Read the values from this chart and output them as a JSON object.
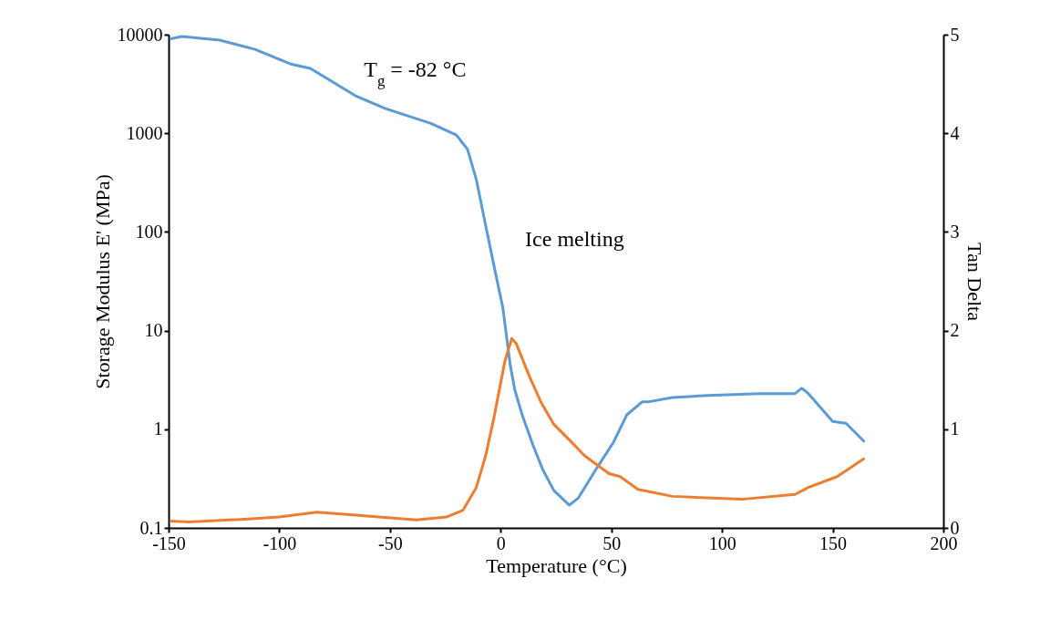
{
  "chart_data": {
    "type": "line",
    "xlabel": "Temperature (°C)",
    "ylabel": "Storage Modulus E' (MPa)",
    "y2label": "Tan Delta",
    "xlim": [
      -150,
      200
    ],
    "xticks": [
      -150,
      -100,
      -50,
      0,
      50,
      100,
      150,
      200
    ],
    "ylim": [
      0.1,
      10000
    ],
    "yticks": [
      0.1,
      1,
      10,
      100,
      1000,
      10000
    ],
    "log": "y",
    "y2lim": [
      0,
      5
    ],
    "y2ticks": [
      0,
      1,
      2,
      3,
      4,
      5
    ],
    "grid": false,
    "marker": "none",
    "line_style": "solid",
    "annotations": [
      "T$_{g}$ = -82 °C",
      "Ice melting"
    ],
    "series": [
      {
        "color": "#5b9bd5",
        "x": [
          -149,
          -144,
          -127,
          -111,
          -94.4,
          -86,
          -65.6,
          -52,
          -31.5,
          -20,
          -15,
          -11,
          -6.8,
          -2.3,
          1,
          4.3,
          6.4,
          9.7,
          14.6,
          19,
          24,
          31,
          35,
          43,
          51,
          57,
          64,
          67,
          77.6,
          93.5,
          117,
          133,
          136,
          139,
          150,
          156,
          164
        ],
        "values": [
          9100,
          9600,
          8800,
          7100,
          5000,
          4550,
          2400,
          1780,
          1260,
          960,
          690,
          340,
          117,
          38,
          17,
          4.5,
          2.5,
          1.4,
          0.69,
          0.39,
          0.24,
          0.17,
          0.2,
          0.39,
          0.74,
          1.4,
          1.9,
          1.9,
          2.1,
          2.2,
          2.3,
          2.3,
          2.6,
          2.3,
          1.2,
          1.15,
          0.76
        ]
      },
      {
        "color": "#ed7d31",
        "axis": "y2",
        "x": [
          -149,
          -141,
          -114,
          -100,
          -83,
          -65.6,
          -38,
          -24.5,
          -17,
          -11,
          -6.8,
          -3,
          1.9,
          5,
          7,
          12.9,
          18.3,
          24,
          32,
          38,
          49,
          54,
          62,
          77.6,
          109,
          133,
          139,
          152,
          164
        ],
        "values": [
          0.07,
          0.06,
          0.09,
          0.11,
          0.16,
          0.13,
          0.08,
          0.11,
          0.18,
          0.41,
          0.73,
          1.12,
          1.69,
          1.92,
          1.87,
          1.54,
          1.27,
          1.05,
          0.87,
          0.73,
          0.55,
          0.52,
          0.39,
          0.32,
          0.29,
          0.34,
          0.41,
          0.52,
          0.7
        ]
      }
    ]
  }
}
